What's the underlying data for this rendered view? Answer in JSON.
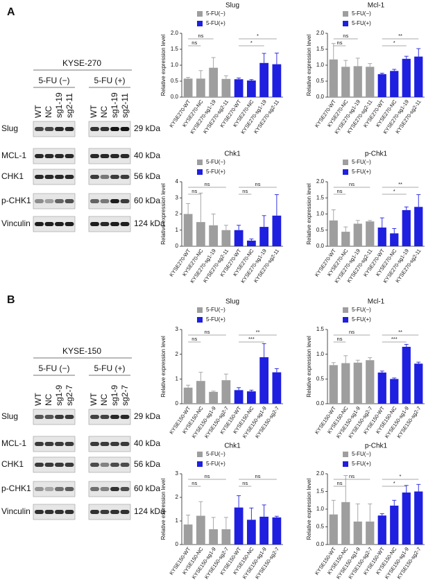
{
  "panels": [
    {
      "label": "A",
      "blot": {
        "cell_line": "KYSE-270",
        "groups": [
          "5-FU (−)",
          "5-FU (+)"
        ],
        "lanes": [
          "WT",
          "NC",
          "sg1-19",
          "sg2-11"
        ],
        "proteins": [
          "Slug",
          "MCL-1",
          "CHK1",
          "p-CHK1",
          "Vinculin"
        ],
        "sizes": [
          "29 kDa",
          "40 kDa",
          "56 kDa",
          "60 kDa",
          "124 kDa"
        ]
      }
    },
    {
      "label": "B",
      "blot": {
        "cell_line": "KYSE-150",
        "groups": [
          "5-FU (−)",
          "5-FU (+)"
        ],
        "lanes": [
          "WT",
          "NC",
          "sg1-9",
          "sg2-7"
        ],
        "proteins": [
          "Slug",
          "MCL-1",
          "CHK1",
          "p-CHK1",
          "Vinculin"
        ],
        "sizes": [
          "29 kDa",
          "40 kDa",
          "56 kDa",
          "60 kDa",
          "124 kDa"
        ]
      }
    }
  ],
  "chart_data": [
    {
      "type": "bar",
      "title": "Slug",
      "y_label": "Relative expression level",
      "categories": [
        "KYSE270-WT",
        "KYSE270-NC",
        "KYSE270-sg1-19",
        "KYSE270-sg2-11",
        "KYSE270-WT",
        "KYSE270-NC",
        "KYSE270-sg1-19",
        "KYSE270-sg2-11"
      ],
      "series": [
        {
          "name": "5-FU(−)",
          "color": "#9e9e9e",
          "values": [
            0.58,
            0.58,
            0.92,
            0.57,
            null,
            null,
            null,
            null
          ],
          "errors": [
            0.04,
            0.25,
            0.32,
            0.1,
            null,
            null,
            null,
            null
          ]
        },
        {
          "name": "5-FU(+)",
          "color": "#1f1fe0",
          "values": [
            null,
            null,
            null,
            null,
            0.56,
            0.52,
            1.07,
            1.03
          ],
          "errors": [
            null,
            null,
            null,
            null,
            0.04,
            0.03,
            0.3,
            0.35
          ]
        }
      ],
      "ylim": [
        0,
        2
      ],
      "yticks": [
        {
          "value": 0,
          "label": "0.0"
        },
        {
          "value": 0.5,
          "label": "0.5"
        },
        {
          "value": 1,
          "label": "1.0"
        },
        {
          "value": 1.5,
          "label": "1.5"
        },
        {
          "value": 2,
          "label": "2.0"
        }
      ],
      "annotations": [
        {
          "label": "ns",
          "from": 0,
          "to": 2
        },
        {
          "label": "ns",
          "from": 0,
          "to": 1
        },
        {
          "label": "*",
          "from": 4,
          "to": 7
        },
        {
          "label": "*",
          "from": 4,
          "to": 6
        }
      ]
    },
    {
      "type": "bar",
      "title": "Mcl-1",
      "y_label": "Relative expression level",
      "categories": [
        "KYSE270-WT",
        "KYSE270-NC",
        "KYSE270-sg1-19",
        "KYSE270-sg2-11",
        "KYSE270-WT",
        "KYSE270-NC",
        "KYSE270-sg1-19",
        "KYSE270-sg2-11"
      ],
      "series": [
        {
          "name": "5-FU(−)",
          "color": "#9e9e9e",
          "values": [
            1.18,
            0.95,
            0.97,
            0.95,
            null,
            null,
            null,
            null
          ],
          "errors": [
            0.5,
            0.2,
            0.25,
            0.1,
            null,
            null,
            null,
            null
          ]
        },
        {
          "name": "5-FU(+)",
          "color": "#1f1fe0",
          "values": [
            null,
            null,
            null,
            null,
            0.72,
            0.82,
            1.2,
            1.27
          ],
          "errors": [
            null,
            null,
            null,
            null,
            0.03,
            0.05,
            0.08,
            0.25
          ]
        }
      ],
      "ylim": [
        0,
        2
      ],
      "yticks": [
        {
          "value": 0,
          "label": "0.0"
        },
        {
          "value": 0.5,
          "label": "0.5"
        },
        {
          "value": 1,
          "label": "1.0"
        },
        {
          "value": 1.5,
          "label": "1.5"
        },
        {
          "value": 2,
          "label": "2.0"
        }
      ],
      "annotations": [
        {
          "label": "ns",
          "from": 0,
          "to": 2
        },
        {
          "label": "ns",
          "from": 0,
          "to": 1
        },
        {
          "label": "**",
          "from": 4,
          "to": 7
        },
        {
          "label": "*",
          "from": 4,
          "to": 6
        }
      ]
    },
    {
      "type": "bar",
      "title": "Chk1",
      "y_label": "Relative expression level",
      "categories": [
        "KYSE270-WT",
        "KYSE270-NC",
        "KYSE270-sg1-19",
        "KYSE270-sg2-11",
        "KYSE270-WT",
        "KYSE270-NC",
        "KYSE270-sg1-19",
        "KYSE270-sg2-11"
      ],
      "series": [
        {
          "name": "5-FU(−)",
          "color": "#9e9e9e",
          "values": [
            2.0,
            1.5,
            1.3,
            1.0,
            null,
            null,
            null,
            null
          ],
          "errors": [
            0.65,
            1.8,
            0.7,
            0.3,
            null,
            null,
            null,
            null
          ]
        },
        {
          "name": "5-FU(+)",
          "color": "#1f1fe0",
          "values": [
            null,
            null,
            null,
            null,
            1.0,
            0.35,
            1.2,
            1.9
          ],
          "errors": [
            null,
            null,
            null,
            null,
            0.3,
            0.1,
            0.7,
            1.3
          ]
        }
      ],
      "ylim": [
        0,
        4
      ],
      "yticks": [
        0,
        1,
        2,
        3,
        4
      ],
      "annotations": [
        {
          "label": "ns",
          "from": 0,
          "to": 3
        },
        {
          "label": "ns",
          "from": 0,
          "to": 1
        },
        {
          "label": "ns",
          "from": 4,
          "to": 7
        },
        {
          "label": "ns",
          "from": 4,
          "to": 5
        }
      ]
    },
    {
      "type": "bar",
      "title": "p-Chk1",
      "y_label": "Relative expression level",
      "categories": [
        "KYSE270-WT",
        "KYSE270-NC",
        "KYSE270-sg1-19",
        "KYSE270-sg2-11",
        "KYSE270-WT",
        "KYSE270-NC",
        "KYSE270-sg1-19",
        "KYSE270-sg2-11"
      ],
      "series": [
        {
          "name": "5-FU(−)",
          "color": "#9e9e9e",
          "values": [
            0.8,
            0.45,
            0.7,
            0.77,
            null,
            null,
            null,
            null
          ],
          "errors": [
            0.33,
            0.15,
            0.1,
            0.03,
            null,
            null,
            null,
            null
          ]
        },
        {
          "name": "5-FU(+)",
          "color": "#1f1fe0",
          "values": [
            null,
            null,
            null,
            null,
            0.58,
            0.4,
            1.12,
            1.22
          ],
          "errors": [
            null,
            null,
            null,
            null,
            0.3,
            0.15,
            0.1,
            0.38
          ]
        }
      ],
      "ylim": [
        0,
        2
      ],
      "yticks": [
        {
          "value": 0,
          "label": "0.0"
        },
        {
          "value": 0.5,
          "label": "0.5"
        },
        {
          "value": 1,
          "label": "1.0"
        },
        {
          "value": 1.5,
          "label": "1.5"
        },
        {
          "value": 2,
          "label": "2.0"
        }
      ],
      "annotations": [
        {
          "label": "ns",
          "from": 0,
          "to": 3
        },
        {
          "label": "ns",
          "from": 0,
          "to": 1
        },
        {
          "label": "**",
          "from": 4,
          "to": 7
        },
        {
          "label": "*",
          "from": 4,
          "to": 6
        }
      ]
    },
    {
      "type": "bar",
      "title": "Slug",
      "y_label": "Relative expression level",
      "categories": [
        "KYSE150-WT",
        "KYSE150-NC",
        "KYSE150-sg1-9",
        "KYSE150-sg2-7",
        "KYSE150-WT",
        "KYSE150-NC",
        "KYSE150-sg1-9",
        "KYSE150-sg2-7"
      ],
      "series": [
        {
          "name": "5-FU(−)",
          "color": "#9e9e9e",
          "values": [
            0.65,
            0.92,
            0.48,
            0.95,
            null,
            null,
            null,
            null
          ],
          "errors": [
            0.1,
            0.35,
            0.03,
            0.25,
            null,
            null,
            null,
            null
          ]
        },
        {
          "name": "5-FU(+)",
          "color": "#1f1fe0",
          "values": [
            null,
            null,
            null,
            null,
            0.55,
            0.5,
            1.88,
            1.27
          ],
          "errors": [
            null,
            null,
            null,
            null,
            0.1,
            0.05,
            0.55,
            0.15
          ]
        }
      ],
      "ylim": [
        0,
        3
      ],
      "yticks": [
        0,
        1,
        2,
        3
      ],
      "annotations": [
        {
          "label": "ns",
          "from": 0,
          "to": 3
        },
        {
          "label": "ns",
          "from": 0,
          "to": 1
        },
        {
          "label": "**",
          "from": 4,
          "to": 7
        },
        {
          "label": "***",
          "from": 4,
          "to": 6
        }
      ]
    },
    {
      "type": "bar",
      "title": "Mcl-1",
      "y_label": "Relative expression level",
      "categories": [
        "KYSE150-WT",
        "KYSE150-NC",
        "KYSE150-sg1-9",
        "KYSE150-sg2-7",
        "KYSE150-WT",
        "KYSE150-NC",
        "KYSE150-sg1-9",
        "KYSE150-sg2-7"
      ],
      "series": [
        {
          "name": "5-FU(−)",
          "color": "#9e9e9e",
          "values": [
            0.78,
            0.82,
            0.83,
            0.88,
            null,
            null,
            null,
            null
          ],
          "errors": [
            0.05,
            0.15,
            0.05,
            0.05,
            null,
            null,
            null,
            null
          ]
        },
        {
          "name": "5-FU(+)",
          "color": "#1f1fe0",
          "values": [
            null,
            null,
            null,
            null,
            0.63,
            0.5,
            1.15,
            0.81
          ],
          "errors": [
            null,
            null,
            null,
            null,
            0.03,
            0.02,
            0.05,
            0.03
          ]
        }
      ],
      "ylim": [
        0,
        1.5
      ],
      "yticks": [
        {
          "value": 0,
          "label": "0.0"
        },
        {
          "value": 0.5,
          "label": "0.5"
        },
        {
          "value": 1,
          "label": "1.0"
        },
        {
          "value": 1.5,
          "label": "1.5"
        }
      ],
      "annotations": [
        {
          "label": "ns",
          "from": 0,
          "to": 3
        },
        {
          "label": "ns",
          "from": 0,
          "to": 1
        },
        {
          "label": "**",
          "from": 4,
          "to": 7
        },
        {
          "label": "***",
          "from": 4,
          "to": 6
        }
      ]
    },
    {
      "type": "bar",
      "title": "Chk1",
      "y_label": "Relative expression level",
      "categories": [
        "KYSE150-WT",
        "KYSE150-NC",
        "KYSE150-sg1-9",
        "KYSE150-sg2-7",
        "KYSE150-WT",
        "KYSE150-NC",
        "KYSE150-sg1-9",
        "KYSE150-sg2-7"
      ],
      "series": [
        {
          "name": "5-FU(−)",
          "color": "#9e9e9e",
          "values": [
            0.85,
            1.22,
            0.65,
            0.65,
            null,
            null,
            null,
            null
          ],
          "errors": [
            0.4,
            0.6,
            0.5,
            0.5,
            null,
            null,
            null,
            null
          ]
        },
        {
          "name": "5-FU(+)",
          "color": "#1f1fe0",
          "values": [
            null,
            null,
            null,
            null,
            1.57,
            1.05,
            1.18,
            1.15
          ],
          "errors": [
            null,
            null,
            null,
            null,
            0.5,
            0.5,
            0.5,
            0.05
          ]
        }
      ],
      "ylim": [
        0,
        3
      ],
      "yticks": [
        0,
        1,
        2,
        3
      ],
      "annotations": [
        {
          "label": "ns",
          "from": 0,
          "to": 3
        },
        {
          "label": "ns",
          "from": 0,
          "to": 1
        },
        {
          "label": "ns",
          "from": 4,
          "to": 7
        },
        {
          "label": "ns",
          "from": 4,
          "to": 5
        }
      ]
    },
    {
      "type": "bar",
      "title": "p-Chk1",
      "y_label": "Relative expression level",
      "categories": [
        "KYSE150-WT",
        "KYSE150-NC",
        "KYSE150-sg1-9",
        "KYSE150-sg2-7",
        "KYSE150-WT",
        "KYSE150-NC",
        "KYSE150-sg1-9",
        "KYSE150-sg2-7"
      ],
      "series": [
        {
          "name": "5-FU(−)",
          "color": "#9e9e9e",
          "values": [
            0.85,
            1.2,
            0.65,
            0.65,
            null,
            null,
            null,
            null
          ],
          "errors": [
            0.4,
            0.75,
            0.5,
            0.5,
            null,
            null,
            null,
            null
          ]
        },
        {
          "name": "5-FU(+)",
          "color": "#1f1fe0",
          "values": [
            null,
            null,
            null,
            null,
            0.82,
            1.1,
            1.47,
            1.5
          ],
          "errors": [
            null,
            null,
            null,
            null,
            0.05,
            0.15,
            0.2,
            0.2
          ]
        }
      ],
      "ylim": [
        0,
        2
      ],
      "yticks": [
        {
          "value": 0,
          "label": "0.0"
        },
        {
          "value": 0.5,
          "label": "0.5"
        },
        {
          "value": 1,
          "label": "1.0"
        },
        {
          "value": 1.5,
          "label": "1.5"
        },
        {
          "value": 2,
          "label": "2.0"
        }
      ],
      "annotations": [
        {
          "label": "ns",
          "from": 0,
          "to": 3
        },
        {
          "label": "ns",
          "from": 0,
          "to": 1
        },
        {
          "label": "*",
          "from": 4,
          "to": 7
        },
        {
          "label": "*",
          "from": 4,
          "to": 6
        }
      ]
    }
  ]
}
